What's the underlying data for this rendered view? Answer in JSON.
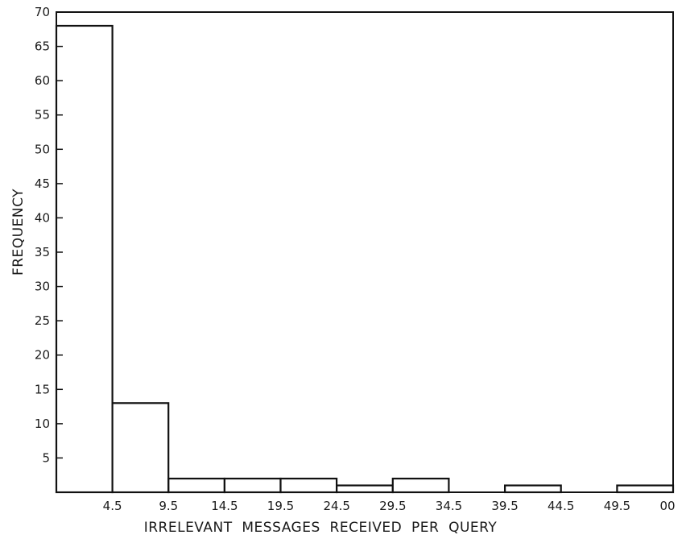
{
  "chart_data": {
    "type": "bar",
    "title": "",
    "xlabel": "IRRELEVANT  MESSAGES  RECEIVED  PER  QUERY",
    "ylabel": "FREQUENCY",
    "ylim": [
      0,
      70
    ],
    "y_ticks": [
      "5",
      "10",
      "15",
      "20",
      "25",
      "30",
      "35",
      "40",
      "45",
      "50",
      "55",
      "60",
      "65",
      "70"
    ],
    "x_ticks": [
      "4.5",
      "9.5",
      "14.5",
      "19.5",
      "24.5",
      "29.5",
      "34.5",
      "39.5",
      "44.5",
      "49.5",
      "00"
    ],
    "bins": [
      {
        "start": 0,
        "end": 4.5,
        "value": 68
      },
      {
        "start": 4.5,
        "end": 9.5,
        "value": 13
      },
      {
        "start": 9.5,
        "end": 14.5,
        "value": 2
      },
      {
        "start": 14.5,
        "end": 19.5,
        "value": 2
      },
      {
        "start": 19.5,
        "end": 24.5,
        "value": 2
      },
      {
        "start": 24.5,
        "end": 29.5,
        "value": 1
      },
      {
        "start": 29.5,
        "end": 34.5,
        "value": 2
      },
      {
        "start": 34.5,
        "end": 39.5,
        "value": 0
      },
      {
        "start": 39.5,
        "end": 44.5,
        "value": 1
      },
      {
        "start": 44.5,
        "end": 49.5,
        "value": 0
      },
      {
        "start": 49.5,
        "end": 54.5,
        "value": 1
      }
    ],
    "grid": false,
    "legend": "none"
  }
}
